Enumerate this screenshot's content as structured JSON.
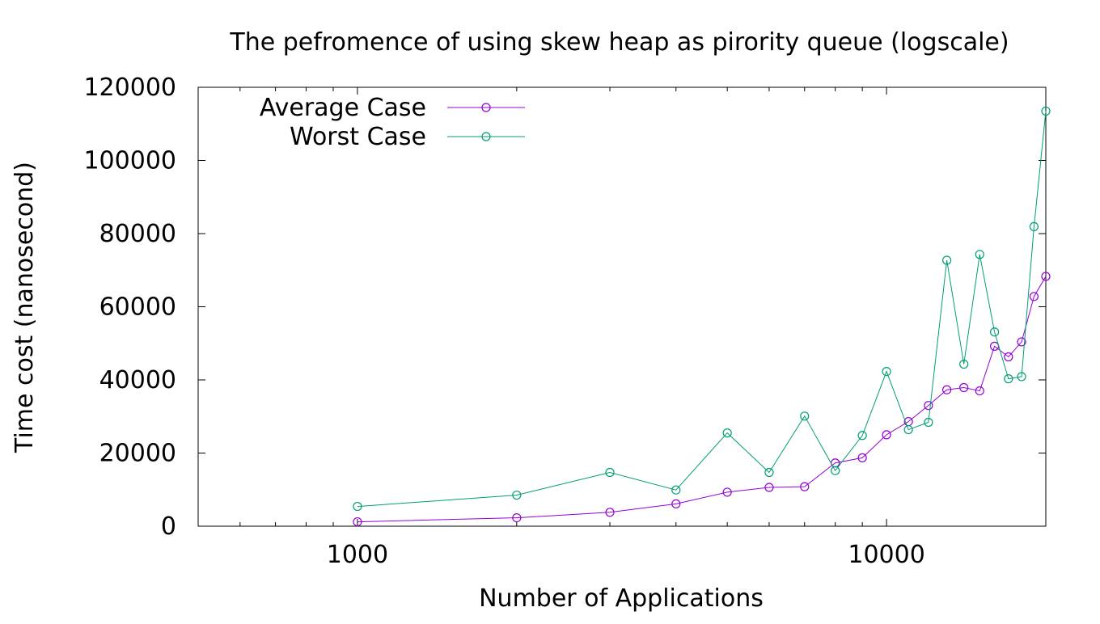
{
  "chart_data": {
    "type": "line",
    "title": "The pefromence of using skew heap as pirority queue (logscale)",
    "xlabel": "Number of Applications",
    "ylabel": "Time cost (nanosecond)",
    "x_scale": "log",
    "xlim": [
      500,
      20000
    ],
    "ylim": [
      0,
      120000
    ],
    "x_ticks": [
      {
        "value": 1000,
        "label": "1000"
      },
      {
        "value": 10000,
        "label": "10000"
      }
    ],
    "y_ticks": [
      {
        "value": 0,
        "label": "0"
      },
      {
        "value": 20000,
        "label": "20000"
      },
      {
        "value": 40000,
        "label": "40000"
      },
      {
        "value": 60000,
        "label": "60000"
      },
      {
        "value": 80000,
        "label": "80000"
      },
      {
        "value": 100000,
        "label": "100000"
      },
      {
        "value": 120000,
        "label": "120000"
      }
    ],
    "grid": false,
    "legend_position": "top-left",
    "x": [
      1000,
      2000,
      3000,
      4000,
      5000,
      6000,
      7000,
      8000,
      9000,
      10000,
      11000,
      12000,
      13000,
      14000,
      15000,
      16000,
      17000,
      18000,
      19000,
      20000
    ],
    "series": [
      {
        "name": "Average Case",
        "color": "#9400d3",
        "values": [
          1200,
          2300,
          3800,
          6100,
          9300,
          10600,
          10800,
          17300,
          18700,
          25000,
          28600,
          33000,
          37300,
          37900,
          37000,
          49200,
          46300,
          50400,
          62800,
          68300
        ]
      },
      {
        "name": "Worst Case",
        "color": "#009e73",
        "values": [
          5400,
          8500,
          14700,
          9900,
          25500,
          14700,
          30100,
          15200,
          24800,
          42300,
          26400,
          28400,
          72700,
          44300,
          74300,
          53100,
          40300,
          40900,
          81900,
          113500
        ]
      }
    ]
  }
}
